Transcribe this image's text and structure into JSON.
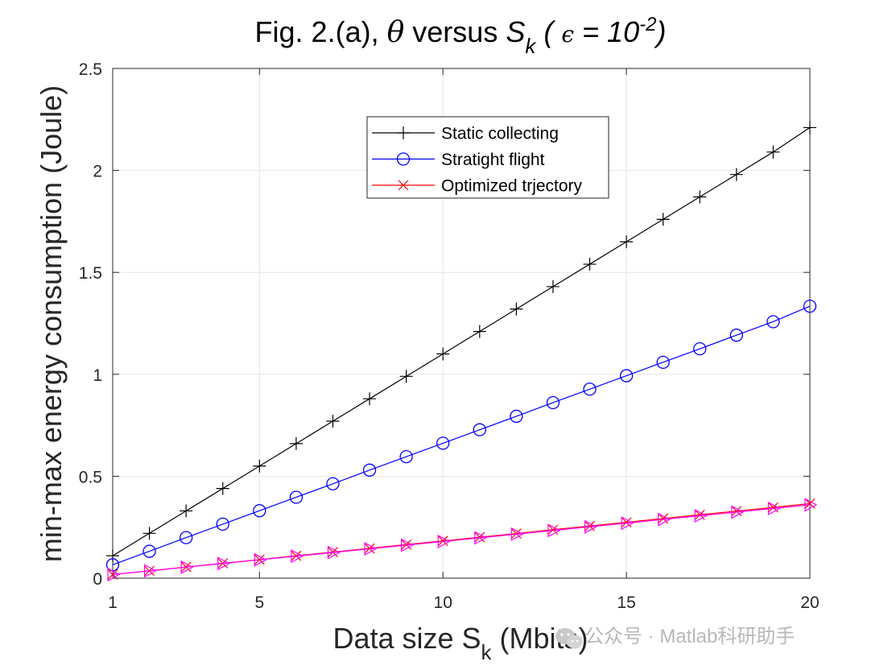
{
  "chart_data": {
    "type": "line",
    "title": {
      "main": "Fig. 2.(a), ",
      "theta": "θ",
      "versus": " versus  ",
      "s": "S",
      "s_sub": "k",
      "paren_open": " ( ",
      "epsilon": "ϵ",
      "eq": " = 10",
      "exp": "-2",
      "paren_close": ")"
    },
    "xlabel": {
      "main": "Data size S",
      "sub": "k",
      "rest": " (Mbits)"
    },
    "ylabel": "min-max energy consumption (Joule)",
    "xlim": [
      1,
      20
    ],
    "ylim": [
      0,
      2.5
    ],
    "xticks": [
      1,
      5,
      10,
      15,
      20
    ],
    "xtick_labels": [
      "1",
      "5",
      "10",
      "15",
      "20"
    ],
    "yticks": [
      0,
      0.5,
      1,
      1.5,
      2,
      2.5
    ],
    "ytick_labels": [
      "0",
      "0.5",
      "1",
      "1.5",
      "2",
      "2.5"
    ],
    "grid": true,
    "legend_position": "top-center",
    "x": [
      1,
      2,
      3,
      4,
      5,
      6,
      7,
      8,
      9,
      10,
      11,
      12,
      13,
      14,
      15,
      16,
      17,
      18,
      19,
      20
    ],
    "series": [
      {
        "name": "Static collecting",
        "color": "#000000",
        "marker": "plus",
        "in_legend": true,
        "values": [
          0.11,
          0.22,
          0.33,
          0.44,
          0.55,
          0.66,
          0.77,
          0.88,
          0.99,
          1.1,
          1.21,
          1.32,
          1.43,
          1.54,
          1.65,
          1.76,
          1.87,
          1.98,
          2.09,
          2.21
        ]
      },
      {
        "name": "Stratight flight",
        "color": "#0000ff",
        "marker": "circle",
        "in_legend": true,
        "values": [
          0.066,
          0.132,
          0.199,
          0.265,
          0.331,
          0.397,
          0.463,
          0.53,
          0.596,
          0.662,
          0.728,
          0.794,
          0.861,
          0.927,
          0.993,
          1.059,
          1.125,
          1.192,
          1.258,
          1.334
        ]
      },
      {
        "name": "Optimized trjectory",
        "color": "#ff0000",
        "marker": "x",
        "in_legend": true,
        "values": [
          0.018,
          0.036,
          0.055,
          0.073,
          0.091,
          0.11,
          0.128,
          0.146,
          0.165,
          0.183,
          0.201,
          0.219,
          0.238,
          0.256,
          0.274,
          0.293,
          0.311,
          0.329,
          0.347,
          0.366
        ]
      },
      {
        "color": "#ff00ff",
        "marker": "triangle-right",
        "in_legend": false,
        "values": [
          0.018,
          0.036,
          0.054,
          0.072,
          0.09,
          0.108,
          0.126,
          0.144,
          0.162,
          0.18,
          0.198,
          0.216,
          0.234,
          0.252,
          0.27,
          0.288,
          0.306,
          0.324,
          0.342,
          0.36
        ]
      }
    ]
  },
  "watermark": {
    "icon": "wechat-icon",
    "text": "公众号 · Matlab科研助手"
  }
}
